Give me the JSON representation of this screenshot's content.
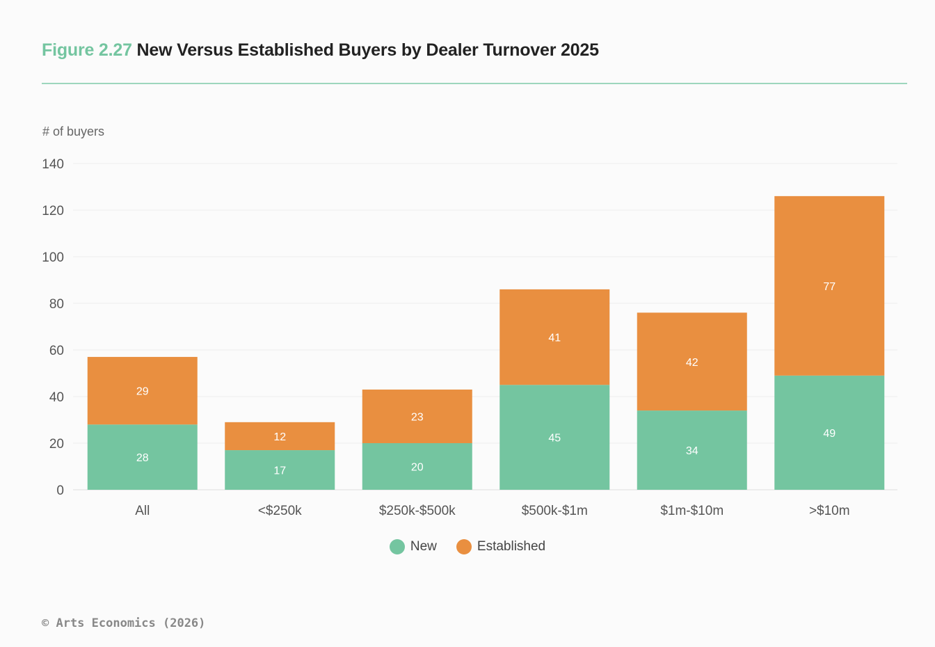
{
  "chart_data": {
    "type": "bar",
    "stacked": true,
    "title_prefix": "Figure 2.27",
    "title": "New Versus Established Buyers by Dealer Turnover 2025",
    "ylabel": "# of buyers",
    "xlabel": "",
    "ylim": [
      0,
      140
    ],
    "yticks": [
      0,
      20,
      40,
      60,
      80,
      100,
      120,
      140
    ],
    "grid": true,
    "legend_position": "bottom",
    "categories": [
      "All",
      "<$250k",
      "$250k-$500k",
      "$500k-$1m",
      "$1m-$10m",
      ">$10m"
    ],
    "series": [
      {
        "name": "New",
        "color": "#74c5a0",
        "values": [
          28,
          17,
          20,
          45,
          34,
          49
        ]
      },
      {
        "name": "Established",
        "color": "#e98f40",
        "values": [
          29,
          12,
          23,
          41,
          42,
          77
        ]
      }
    ]
  },
  "footer": "© Arts Economics (2026)"
}
